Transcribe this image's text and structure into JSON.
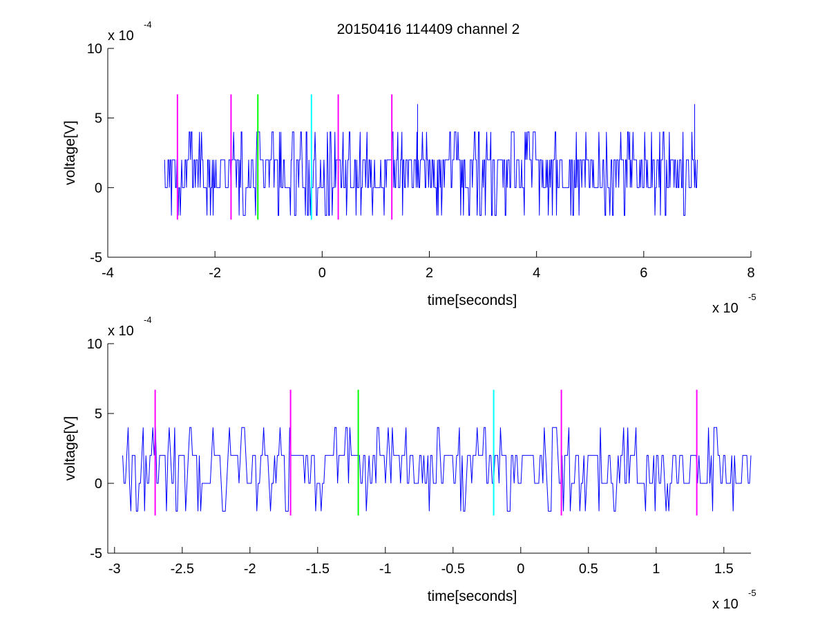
{
  "figure_title": "20150416 114409 channel 2",
  "colors": {
    "signal": "#0000ff",
    "magenta": "#ff00ff",
    "green": "#00ff00",
    "cyan": "#00ffff",
    "axes": "#000000"
  },
  "chart_data": [
    {
      "type": "line",
      "title": "20150416 114409 channel 2",
      "xlabel": "time[seconds]",
      "ylabel": "voltage[V]",
      "x_multiplier": "x 10",
      "x_exponent": "-5",
      "y_multiplier": "x 10",
      "y_exponent": "-4",
      "xlim": [
        -4,
        8
      ],
      "ylim": [
        -5,
        10
      ],
      "xticks": [
        -4,
        -2,
        0,
        2,
        4,
        6,
        8
      ],
      "xtick_labels": [
        "-4",
        "-2",
        "0",
        "2",
        "4",
        "6",
        "8"
      ],
      "yticks": [
        -5,
        0,
        5,
        10
      ],
      "ytick_labels": [
        "-5",
        "0",
        "5",
        "10"
      ],
      "grid": false,
      "series": [
        {
          "color": "#0000ff",
          "x_range": [
            -2.94,
            7.0
          ],
          "levels": [
            -2,
            0,
            2,
            4,
            6
          ],
          "description_values": "quantized noisy trace, mostly 0..2 with excursions to 4 and -2, peaks of 6 near x=1.8 and x=6.95"
        }
      ],
      "markers": [
        {
          "x": -2.7,
          "color": "#ff00ff",
          "ymin": -2.3,
          "ymax": 6.7
        },
        {
          "x": -1.7,
          "color": "#ff00ff",
          "ymin": -2.3,
          "ymax": 6.7
        },
        {
          "x": -1.2,
          "color": "#00ff00",
          "ymin": -2.3,
          "ymax": 6.7
        },
        {
          "x": -0.2,
          "color": "#00ffff",
          "ymin": -2.3,
          "ymax": 6.7
        },
        {
          "x": 0.3,
          "color": "#ff00ff",
          "ymin": -2.3,
          "ymax": 6.7
        },
        {
          "x": 1.3,
          "color": "#ff00ff",
          "ymin": -2.3,
          "ymax": 6.7
        }
      ]
    },
    {
      "type": "line",
      "title": "",
      "xlabel": "time[seconds]",
      "ylabel": "voltage[V]",
      "x_multiplier": "x 10",
      "x_exponent": "-5",
      "y_multiplier": "x 10",
      "y_exponent": "-4",
      "xlim": [
        -3.05,
        1.7
      ],
      "ylim": [
        -5,
        10
      ],
      "xticks": [
        -3,
        -2.5,
        -2,
        -1.5,
        -1,
        -0.5,
        0,
        0.5,
        1,
        1.5
      ],
      "xtick_labels": [
        "-3",
        "-2.5",
        "-2",
        "-1.5",
        "-1",
        "-0.5",
        "0",
        "0.5",
        "1",
        "1.5"
      ],
      "yticks": [
        -5,
        0,
        5,
        10
      ],
      "ytick_labels": [
        "-5",
        "0",
        "5",
        "10"
      ],
      "grid": false,
      "series": [
        {
          "color": "#0000ff",
          "x_range": [
            -2.94,
            1.7
          ],
          "levels": [
            -2,
            0,
            2,
            4
          ],
          "description_values": "zoomed quantized noisy trace, mostly 0..2 with excursions to 4 and -2"
        }
      ],
      "markers": [
        {
          "x": -2.7,
          "color": "#ff00ff",
          "ymin": -2.3,
          "ymax": 6.7
        },
        {
          "x": -1.7,
          "color": "#ff00ff",
          "ymin": -2.3,
          "ymax": 6.7
        },
        {
          "x": -1.2,
          "color": "#00ff00",
          "ymin": -2.3,
          "ymax": 6.7
        },
        {
          "x": -0.2,
          "color": "#00ffff",
          "ymin": -2.3,
          "ymax": 6.7
        },
        {
          "x": 0.3,
          "color": "#ff00ff",
          "ymin": -2.3,
          "ymax": 6.7
        },
        {
          "x": 1.3,
          "color": "#ff00ff",
          "ymin": -2.3,
          "ymax": 6.7
        }
      ]
    }
  ]
}
